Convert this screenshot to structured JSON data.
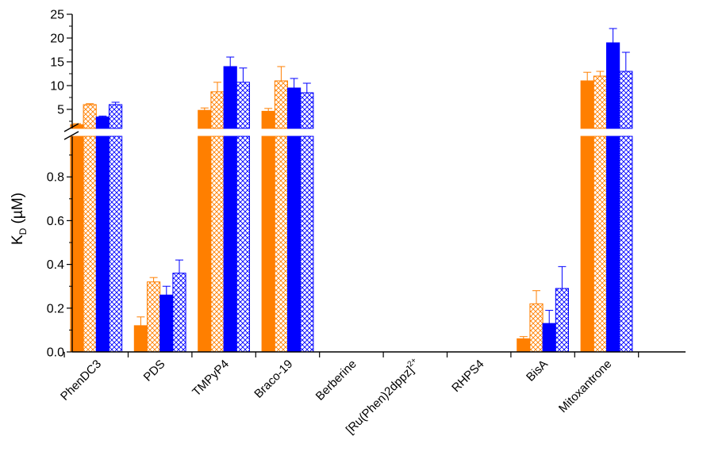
{
  "chart_data": {
    "type": "bar",
    "ylabel": "K",
    "ylabel_subscript": "D",
    "ylabel_unit": "(µM)",
    "y_axis_break": true,
    "ylim_lower": [
      0,
      1.0
    ],
    "ylim_upper": [
      0,
      25
    ],
    "yticks_lower": [
      "0.0",
      "0.2",
      "0.4",
      "0.6",
      "0.8"
    ],
    "yticks_upper": [
      "5",
      "10",
      "15",
      "20",
      "25"
    ],
    "categories": [
      "PhenDC3",
      "PDS",
      "TMPyP4",
      "Braco-19",
      "Berberine",
      "[Ru(Phen)2dppz]",
      "RHPS4",
      "BisA",
      "Mitoxantrone"
    ],
    "category_superscripts": [
      "",
      "",
      "",
      "",
      "",
      "2+",
      "",
      "",
      ""
    ],
    "series": [
      {
        "color": "#FF7F00",
        "fill": "solid",
        "values": [
          1.8,
          0.12,
          4.8,
          4.6,
          null,
          null,
          null,
          0.06,
          11.0
        ],
        "errors": [
          0.2,
          0.04,
          0.5,
          0.6,
          null,
          null,
          null,
          0.01,
          1.8
        ]
      },
      {
        "color": "#FF7F00",
        "fill": "hatched",
        "values": [
          6.0,
          0.32,
          8.7,
          11.0,
          null,
          null,
          null,
          0.22,
          12.0
        ],
        "errors": [
          0.2,
          0.02,
          2.0,
          3.0,
          null,
          null,
          null,
          0.06,
          1.0
        ]
      },
      {
        "color": "#0000FF",
        "fill": "solid",
        "values": [
          3.4,
          0.26,
          14.0,
          9.5,
          null,
          null,
          null,
          0.13,
          19.0
        ],
        "errors": [
          0.2,
          0.04,
          2.0,
          2.0,
          null,
          null,
          null,
          0.06,
          3.0
        ]
      },
      {
        "color": "#0000FF",
        "fill": "hatched",
        "values": [
          6.0,
          0.36,
          10.7,
          8.5,
          null,
          null,
          null,
          0.29,
          13.0
        ],
        "errors": [
          0.5,
          0.06,
          3.0,
          2.0,
          null,
          null,
          null,
          0.1,
          4.0
        ]
      }
    ]
  }
}
